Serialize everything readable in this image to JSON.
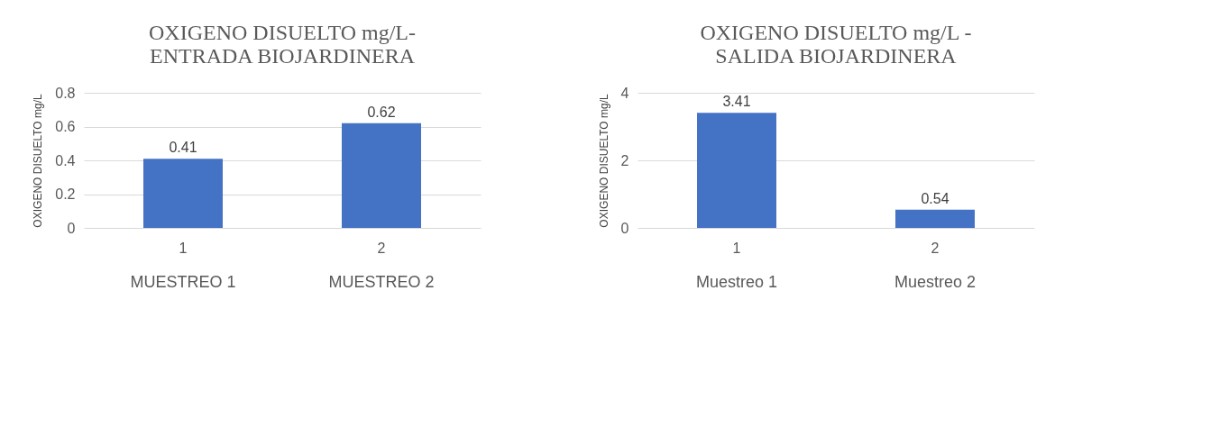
{
  "chart_data": [
    {
      "type": "bar",
      "title": [
        "OXIGENO DISUELTO mg/L-",
        "ENTRADA BIOJARDINERA"
      ],
      "ylabel": "OXIGENO DISUELTO mg/L",
      "categories": [
        "1",
        "2"
      ],
      "values": [
        0.41,
        0.62
      ],
      "color": "#4472c4",
      "ylim": [
        0,
        0.8
      ],
      "yticks": [
        0,
        0.2,
        0.4,
        0.6,
        0.8
      ],
      "grid": "y",
      "data_labels": true,
      "annotations": [
        "MUESTREO 1",
        "MUESTREO 2"
      ]
    },
    {
      "type": "bar",
      "title": [
        "OXIGENO DISUELTO mg/L -",
        "SALIDA BIOJARDINERA"
      ],
      "ylabel": "OXIGENO DISUELTO mg/L",
      "categories": [
        "1",
        "2"
      ],
      "values": [
        3.41,
        0.54
      ],
      "color": "#4472c4",
      "ylim": [
        0,
        4
      ],
      "yticks": [
        0,
        2,
        4
      ],
      "grid": "y",
      "data_labels": true,
      "annotations": [
        "Muestreo 1",
        "Muestreo 2"
      ]
    }
  ]
}
